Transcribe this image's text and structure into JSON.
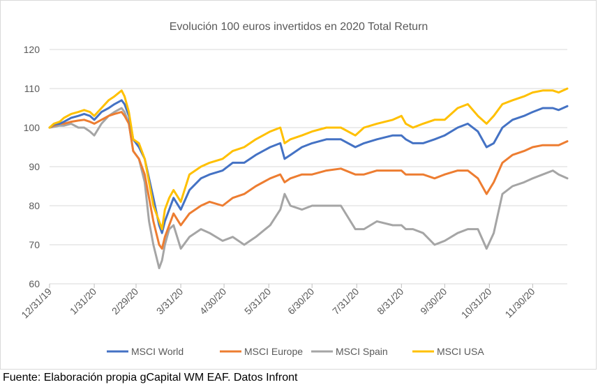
{
  "source_note": "Fuente: Elaboración propia gCapital WM EAF. Datos Infront",
  "chart_data": {
    "type": "line",
    "title": "Evolución 100 euros invertidos en 2020 Total Return",
    "xlabel": "",
    "ylabel": "",
    "ylim": [
      60,
      120
    ],
    "yticks": [
      60,
      70,
      80,
      90,
      100,
      110,
      120
    ],
    "xlim": [
      "12/31/19",
      "12/24/20"
    ],
    "xticks": [
      "12/31/19",
      "1/31/20",
      "2/29/20",
      "3/31/20",
      "4/30/20",
      "5/31/20",
      "6/30/20",
      "7/31/20",
      "8/31/20",
      "9/30/20",
      "10/31/20",
      "11/30/20"
    ],
    "grid": "horizontal",
    "legend_position": "bottom",
    "x": [
      "12/31/19",
      "1/3/20",
      "1/7/20",
      "1/10/20",
      "1/15/20",
      "1/20/20",
      "1/24/20",
      "1/28/20",
      "1/31/20",
      "2/5/20",
      "2/10/20",
      "2/14/20",
      "2/19/20",
      "2/21/20",
      "2/24/20",
      "2/27/20",
      "3/2/20",
      "3/6/20",
      "3/9/20",
      "3/12/20",
      "3/16/20",
      "3/18/20",
      "3/20/20",
      "3/23/20",
      "3/26/20",
      "3/31/20",
      "4/6/20",
      "4/14/20",
      "4/20/20",
      "4/29/20",
      "5/6/20",
      "5/14/20",
      "5/22/20",
      "6/1/20",
      "6/8/20",
      "6/11/20",
      "6/15/20",
      "6/23/20",
      "6/30/20",
      "7/10/20",
      "7/20/20",
      "7/30/20",
      "8/5/20",
      "8/14/20",
      "8/25/20",
      "8/31/20",
      "9/3/20",
      "9/8/20",
      "9/15/20",
      "9/23/20",
      "9/30/20",
      "10/9/20",
      "10/16/20",
      "10/23/20",
      "10/29/20",
      "11/3/20",
      "11/9/20",
      "11/16/20",
      "11/24/20",
      "11/30/20",
      "12/7/20",
      "12/14/20",
      "12/18/20",
      "12/24/20"
    ],
    "series": [
      {
        "name": "MSCI World",
        "color": "#4472C4",
        "values": [
          100,
          100.8,
          101,
          101.5,
          102.5,
          103,
          103.5,
          103,
          102,
          104,
          105,
          106,
          107,
          106,
          103,
          97,
          95,
          92,
          87,
          82,
          75,
          73,
          76,
          79,
          82,
          79,
          84,
          87,
          88,
          89,
          91,
          91,
          93,
          95,
          96,
          92,
          93,
          95,
          96,
          97,
          97,
          95,
          96,
          97,
          98,
          98,
          97,
          96,
          96,
          97,
          98,
          100,
          101,
          99,
          95,
          96,
          100,
          102,
          103,
          104,
          105,
          105,
          104.5,
          105.5
        ]
      },
      {
        "name": "MSCI Europe",
        "color": "#ED7D31",
        "values": [
          100,
          100.5,
          101,
          101,
          101.5,
          101.8,
          102,
          101.5,
          101,
          102,
          103,
          103.5,
          104,
          103,
          101,
          94,
          92,
          88,
          82,
          76,
          70,
          69,
          72,
          75,
          78,
          75,
          78,
          80,
          81,
          80,
          82,
          83,
          85,
          87,
          88,
          86,
          87,
          88,
          88,
          89,
          89.5,
          88,
          88,
          89,
          89,
          89,
          88,
          88,
          88,
          87,
          88,
          89,
          89,
          87,
          83,
          86,
          91,
          93,
          94,
          95,
          95.5,
          95.5,
          95.5,
          96.5
        ]
      },
      {
        "name": "MSCI Spain",
        "color": "#A5A5A5",
        "values": [
          100,
          100.2,
          100.5,
          100.5,
          101,
          100,
          100,
          99,
          98,
          101,
          103,
          104,
          105,
          104,
          101,
          94,
          92,
          86,
          76,
          70,
          64,
          66,
          70,
          74,
          75,
          69,
          72,
          74,
          73,
          71,
          72,
          70,
          72,
          75,
          79,
          83,
          80,
          79,
          80,
          80,
          80,
          74,
          74,
          76,
          75,
          75,
          74,
          74,
          73,
          70,
          71,
          73,
          74,
          74,
          69,
          73,
          83,
          85,
          86,
          87,
          88,
          89,
          88,
          87
        ]
      },
      {
        "name": "MSCI USA",
        "color": "#FFC000",
        "values": [
          100,
          101,
          101.5,
          102.5,
          103.5,
          104,
          104.5,
          104,
          103,
          105,
          107,
          108,
          109.5,
          108,
          104,
          97,
          96,
          92,
          86,
          80,
          76,
          74,
          79,
          82,
          84,
          81,
          88,
          90,
          91,
          92,
          94,
          95,
          97,
          99,
          100,
          96,
          97,
          98,
          99,
          100,
          100,
          98,
          100,
          101,
          102,
          103,
          101,
          100,
          101,
          102,
          102,
          105,
          106,
          103,
          101,
          103,
          106,
          107,
          108,
          109,
          109.5,
          109.5,
          109,
          110
        ]
      }
    ]
  }
}
